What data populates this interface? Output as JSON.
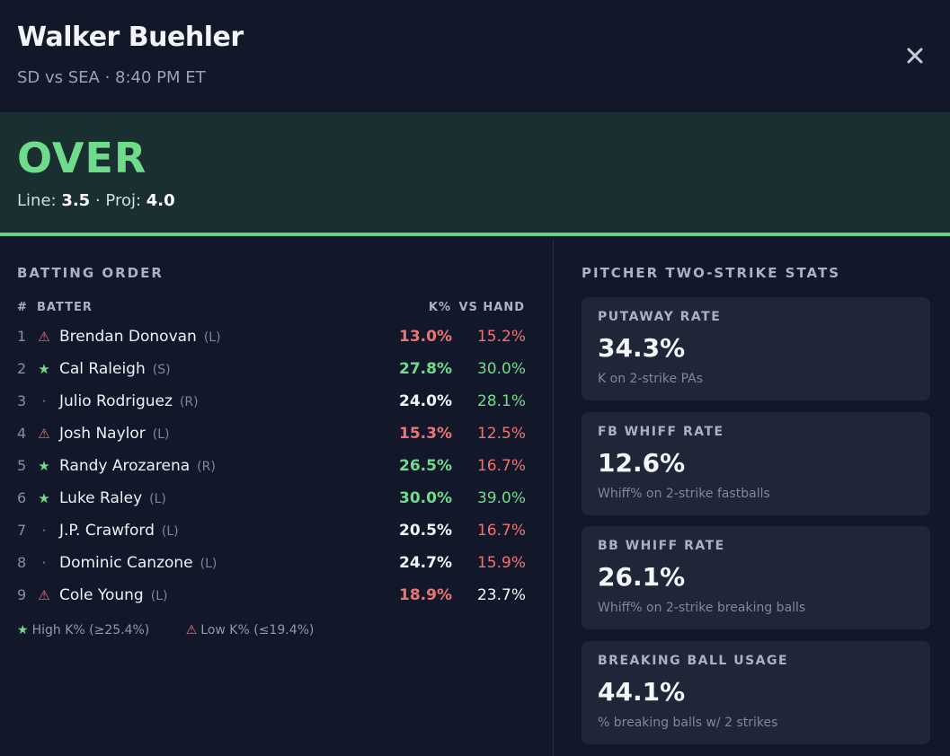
{
  "header": {
    "title": "Walker Buehler",
    "subtitle": "SD vs SEA · 8:40 PM ET",
    "close_icon": "✕"
  },
  "verdict": {
    "pick": "OVER",
    "line_label": "Line:",
    "line_value": "3.5",
    "separator": "·",
    "proj_label": "Proj:",
    "proj_value": "4.0"
  },
  "batting_order": {
    "title": "BATTING ORDER",
    "columns": {
      "num": "#",
      "batter": "BATTER",
      "k": "K%",
      "vs": "VS HAND"
    },
    "rows": [
      {
        "num": "1",
        "mark": "⚠",
        "mark_type": "low",
        "name": "Brendan Donovan",
        "hand": "(L)",
        "k": "13.0%",
        "k_color": "red",
        "vs": "15.2%",
        "vs_color": "red"
      },
      {
        "num": "2",
        "mark": "★",
        "mark_type": "high",
        "name": "Cal Raleigh",
        "hand": "(S)",
        "k": "27.8%",
        "k_color": "green",
        "vs": "30.0%",
        "vs_color": "green"
      },
      {
        "num": "3",
        "mark": "·",
        "mark_type": "neutral",
        "name": "Julio Rodriguez",
        "hand": "(R)",
        "k": "24.0%",
        "k_color": "white",
        "vs": "28.1%",
        "vs_color": "green"
      },
      {
        "num": "4",
        "mark": "⚠",
        "mark_type": "low",
        "name": "Josh Naylor",
        "hand": "(L)",
        "k": "15.3%",
        "k_color": "red",
        "vs": "12.5%",
        "vs_color": "red"
      },
      {
        "num": "5",
        "mark": "★",
        "mark_type": "high",
        "name": "Randy Arozarena",
        "hand": "(R)",
        "k": "26.5%",
        "k_color": "green",
        "vs": "16.7%",
        "vs_color": "red"
      },
      {
        "num": "6",
        "mark": "★",
        "mark_type": "high",
        "name": "Luke Raley",
        "hand": "(L)",
        "k": "30.0%",
        "k_color": "green",
        "vs": "39.0%",
        "vs_color": "green"
      },
      {
        "num": "7",
        "mark": "·",
        "mark_type": "neutral",
        "name": "J.P. Crawford",
        "hand": "(L)",
        "k": "20.5%",
        "k_color": "white",
        "vs": "16.7%",
        "vs_color": "red"
      },
      {
        "num": "8",
        "mark": "·",
        "mark_type": "neutral",
        "name": "Dominic Canzone",
        "hand": "(L)",
        "k": "24.7%",
        "k_color": "white",
        "vs": "15.9%",
        "vs_color": "red"
      },
      {
        "num": "9",
        "mark": "⚠",
        "mark_type": "low",
        "name": "Cole Young",
        "hand": "(L)",
        "k": "18.9%",
        "k_color": "red",
        "vs": "23.7%",
        "vs_color": "white"
      }
    ],
    "legend": {
      "high_icon": "★",
      "high": "High K% (≥25.4%)",
      "low_icon": "⚠",
      "low": "Low K% (≤19.4%)"
    }
  },
  "pitcher_stats": {
    "title": "PITCHER TWO-STRIKE STATS",
    "cards": [
      {
        "label": "PUTAWAY RATE",
        "value": "34.3%",
        "desc": "K on 2-strike PAs"
      },
      {
        "label": "FB WHIFF RATE",
        "value": "12.6%",
        "desc": "Whiff% on 2-strike fastballs"
      },
      {
        "label": "BB WHIFF RATE",
        "value": "26.1%",
        "desc": "Whiff% on 2-strike breaking balls"
      },
      {
        "label": "BREAKING BALL USAGE",
        "value": "44.1%",
        "desc": "% breaking balls w/ 2 strikes"
      }
    ]
  },
  "colors": {
    "background": "#121829",
    "verdict_bg": "#1a2f2f",
    "accent_green": "#6fdc8c",
    "accent_red": "#ee7373",
    "card_bg": "#1f2637"
  }
}
